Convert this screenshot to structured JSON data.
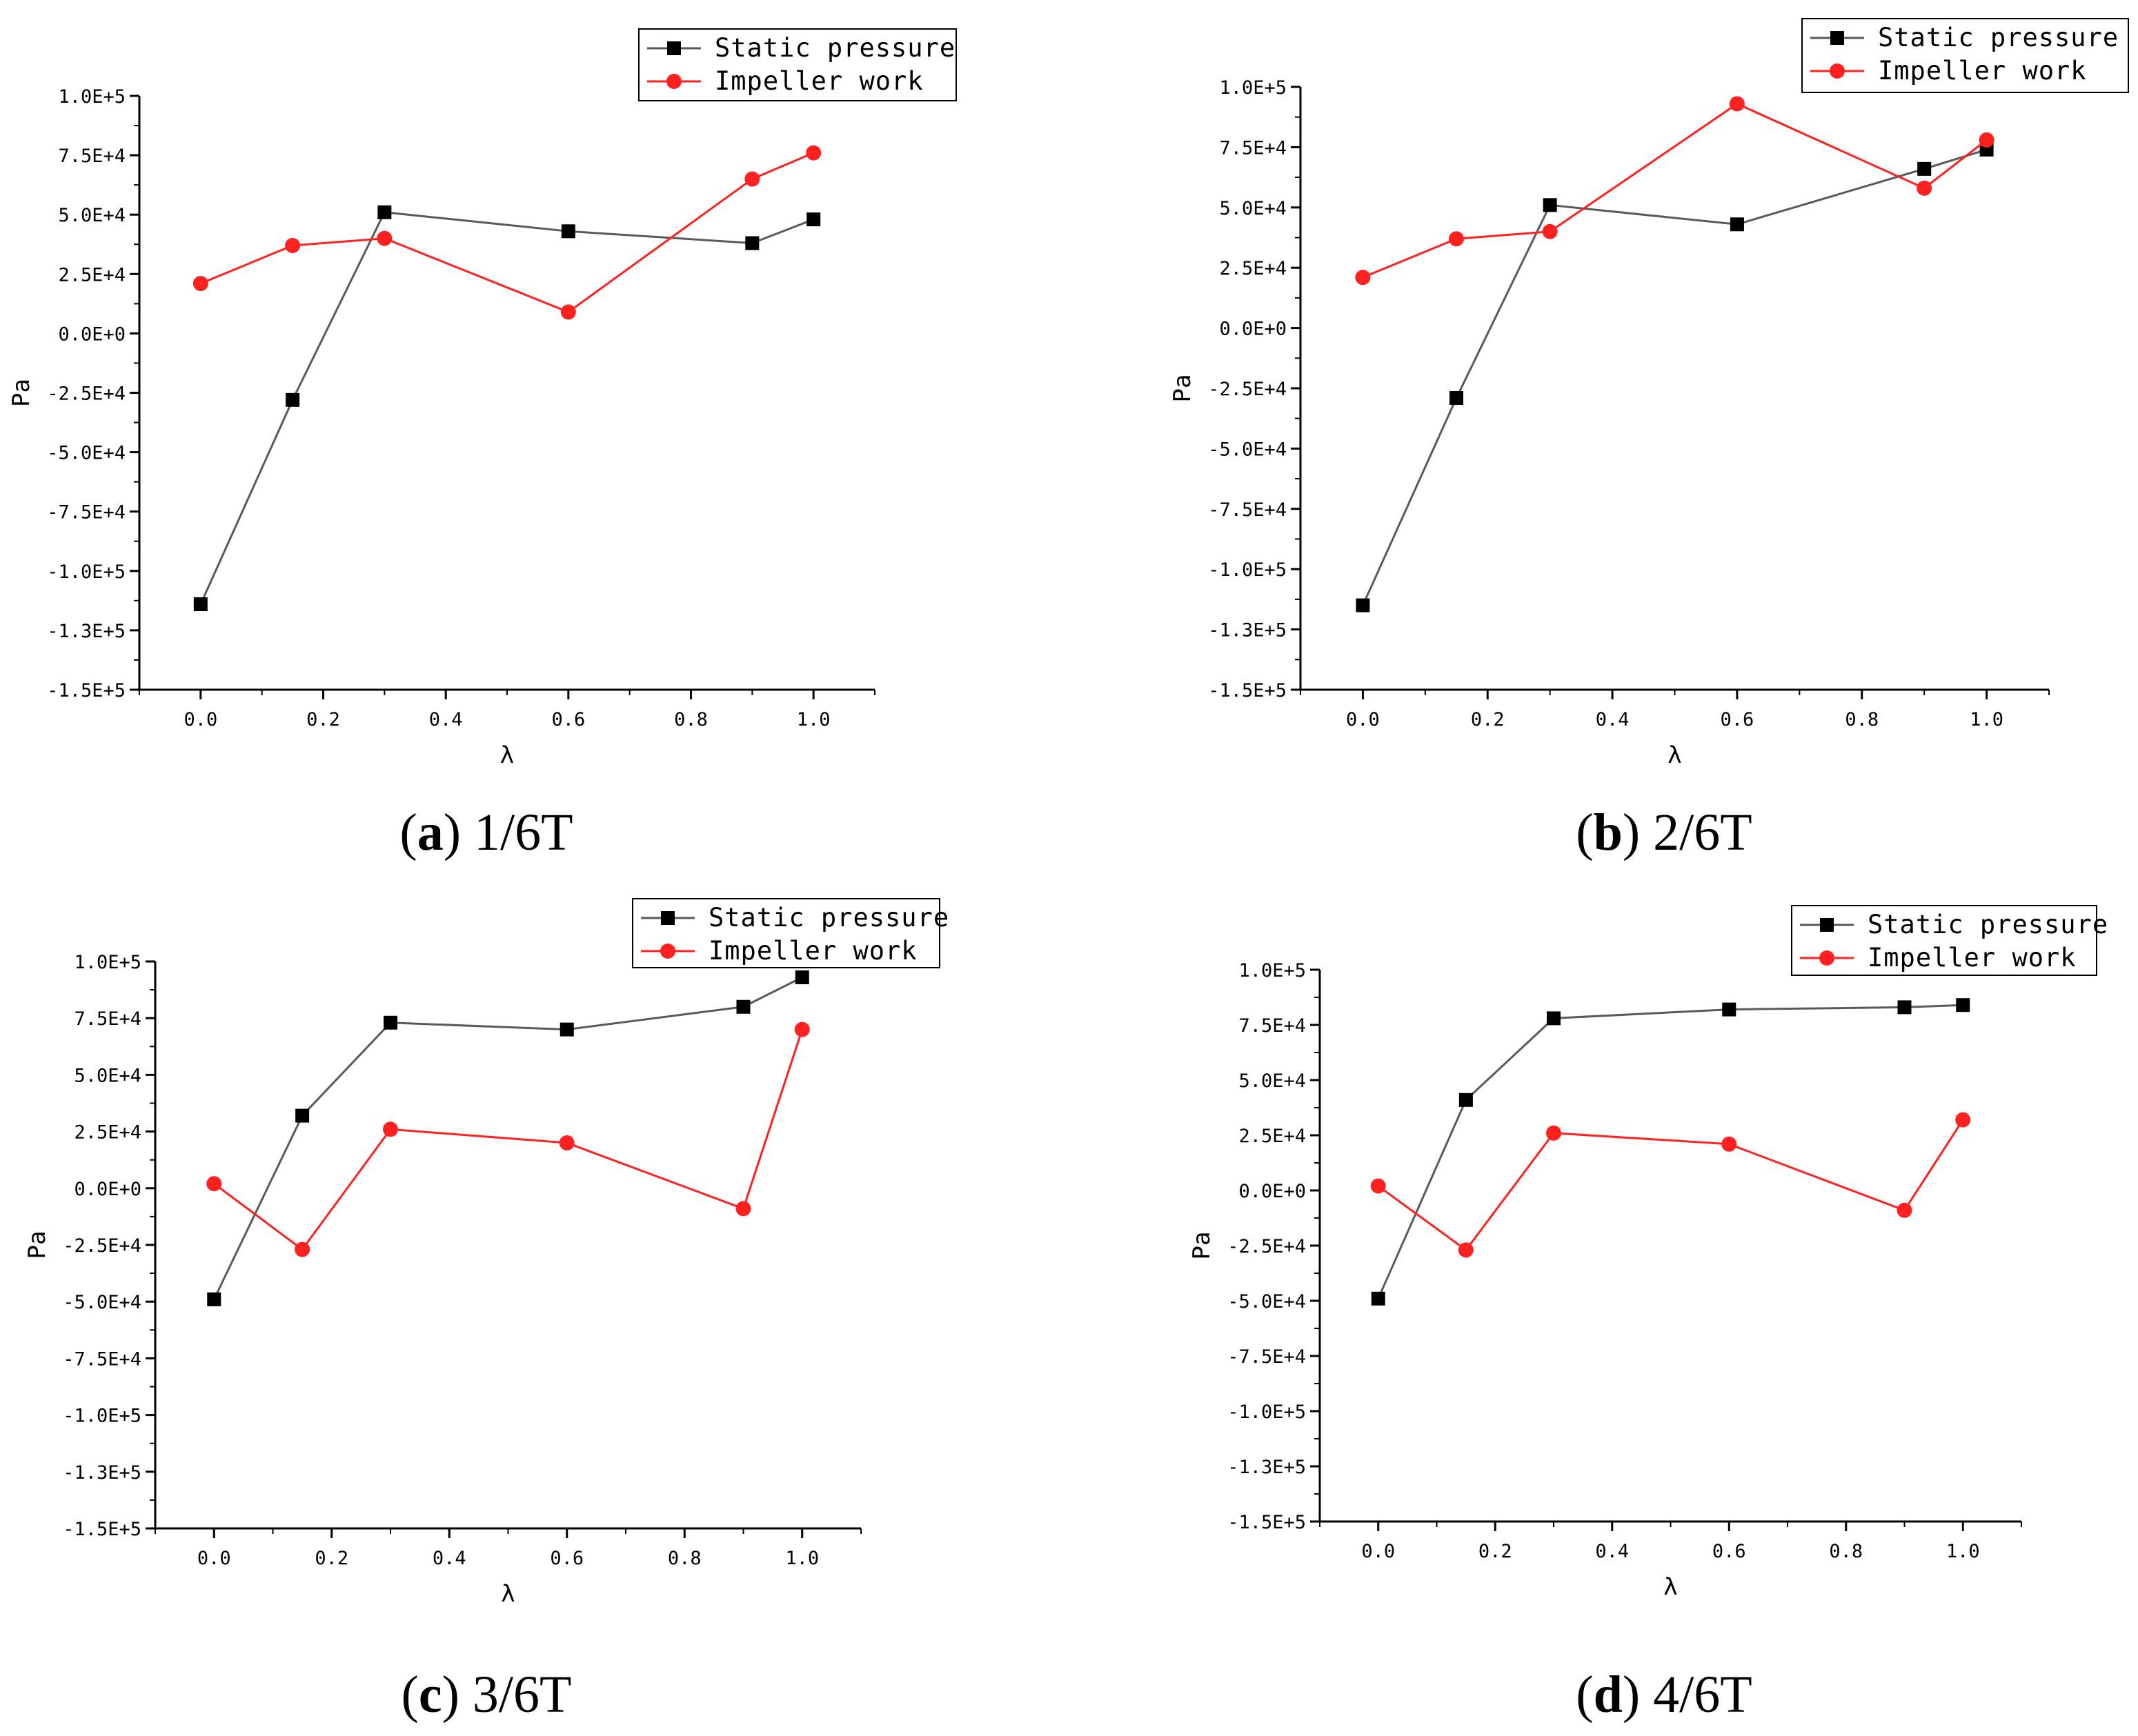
{
  "colors": {
    "static": "#5a5a5a",
    "static_marker": "#000000",
    "impeller": "#ff2020",
    "axis": "#000000"
  },
  "chart_data": [
    {
      "type": "line",
      "caption_letter": "a",
      "caption_text": "1/6T",
      "xlabel": "λ",
      "ylabel": "Pa",
      "xlim": [
        -0.1,
        1.1
      ],
      "ylim": [
        -150000,
        100000
      ],
      "xticks": [
        "0.0",
        "0.2",
        "0.4",
        "0.6",
        "0.8",
        "1.0"
      ],
      "yticks": [
        "1.0E+5",
        "7.5E+4",
        "5.0E+4",
        "2.5E+4",
        "0.0E+0",
        "-2.5E+4",
        "-5.0E+4",
        "-7.5E+4",
        "-1.0E+5",
        "-1.3E+5",
        "-1.5E+5"
      ],
      "x": [
        0,
        0.15,
        0.3,
        0.6,
        0.9,
        1.0
      ],
      "series": [
        {
          "name": "Static pressure",
          "values": [
            -114000,
            -28000,
            51000,
            43000,
            38000,
            48000
          ]
        },
        {
          "name": "Impeller work",
          "values": [
            21000,
            37000,
            40000,
            9000,
            65000,
            76000
          ]
        }
      ]
    },
    {
      "type": "line",
      "caption_letter": "b",
      "caption_text": "2/6T",
      "xlabel": "λ",
      "ylabel": "Pa",
      "xlim": [
        -0.1,
        1.1
      ],
      "ylim": [
        -150000,
        100000
      ],
      "xticks": [
        "0.0",
        "0.2",
        "0.4",
        "0.6",
        "0.8",
        "1.0"
      ],
      "yticks": [
        "1.0E+5",
        "7.5E+4",
        "5.0E+4",
        "2.5E+4",
        "0.0E+0",
        "-2.5E+4",
        "-5.0E+4",
        "-7.5E+4",
        "-1.0E+5",
        "-1.3E+5",
        "-1.5E+5"
      ],
      "x": [
        0,
        0.15,
        0.3,
        0.6,
        0.9,
        1.0
      ],
      "series": [
        {
          "name": "Static pressure",
          "values": [
            -115000,
            -29000,
            51000,
            43000,
            66000,
            74000
          ]
        },
        {
          "name": "Impeller work",
          "values": [
            21000,
            37000,
            40000,
            93000,
            58000,
            78000
          ]
        }
      ]
    },
    {
      "type": "line",
      "caption_letter": "c",
      "caption_text": "3/6T",
      "xlabel": "λ",
      "ylabel": "Pa",
      "xlim": [
        -0.1,
        1.1
      ],
      "ylim": [
        -150000,
        100000
      ],
      "xticks": [
        "0.0",
        "0.2",
        "0.4",
        "0.6",
        "0.8",
        "1.0"
      ],
      "yticks": [
        "1.0E+5",
        "7.5E+4",
        "5.0E+4",
        "2.5E+4",
        "0.0E+0",
        "-2.5E+4",
        "-5.0E+4",
        "-7.5E+4",
        "-1.0E+5",
        "-1.3E+5",
        "-1.5E+5"
      ],
      "x": [
        0,
        0.15,
        0.3,
        0.6,
        0.9,
        1.0
      ],
      "series": [
        {
          "name": "Static pressure",
          "values": [
            -49000,
            32000,
            73000,
            70000,
            80000,
            93000
          ]
        },
        {
          "name": "Impeller work",
          "values": [
            2000,
            -27000,
            26000,
            20000,
            -9000,
            70000
          ]
        }
      ]
    },
    {
      "type": "line",
      "caption_letter": "d",
      "caption_text": "4/6T",
      "xlabel": "λ",
      "ylabel": "Pa",
      "xlim": [
        -0.1,
        1.1
      ],
      "ylim": [
        -150000,
        100000
      ],
      "xticks": [
        "0.0",
        "0.2",
        "0.4",
        "0.6",
        "0.8",
        "1.0"
      ],
      "yticks": [
        "1.0E+5",
        "7.5E+4",
        "5.0E+4",
        "2.5E+4",
        "0.0E+0",
        "-2.5E+4",
        "-5.0E+4",
        "-7.5E+4",
        "-1.0E+5",
        "-1.3E+5",
        "-1.5E+5"
      ],
      "x": [
        0,
        0.15,
        0.3,
        0.6,
        0.9,
        1.0
      ],
      "series": [
        {
          "name": "Static pressure",
          "values": [
            -49000,
            41000,
            78000,
            82000,
            83000,
            84000
          ]
        },
        {
          "name": "Impeller work",
          "values": [
            2000,
            -27000,
            26000,
            21000,
            -9000,
            32000
          ]
        }
      ]
    }
  ]
}
